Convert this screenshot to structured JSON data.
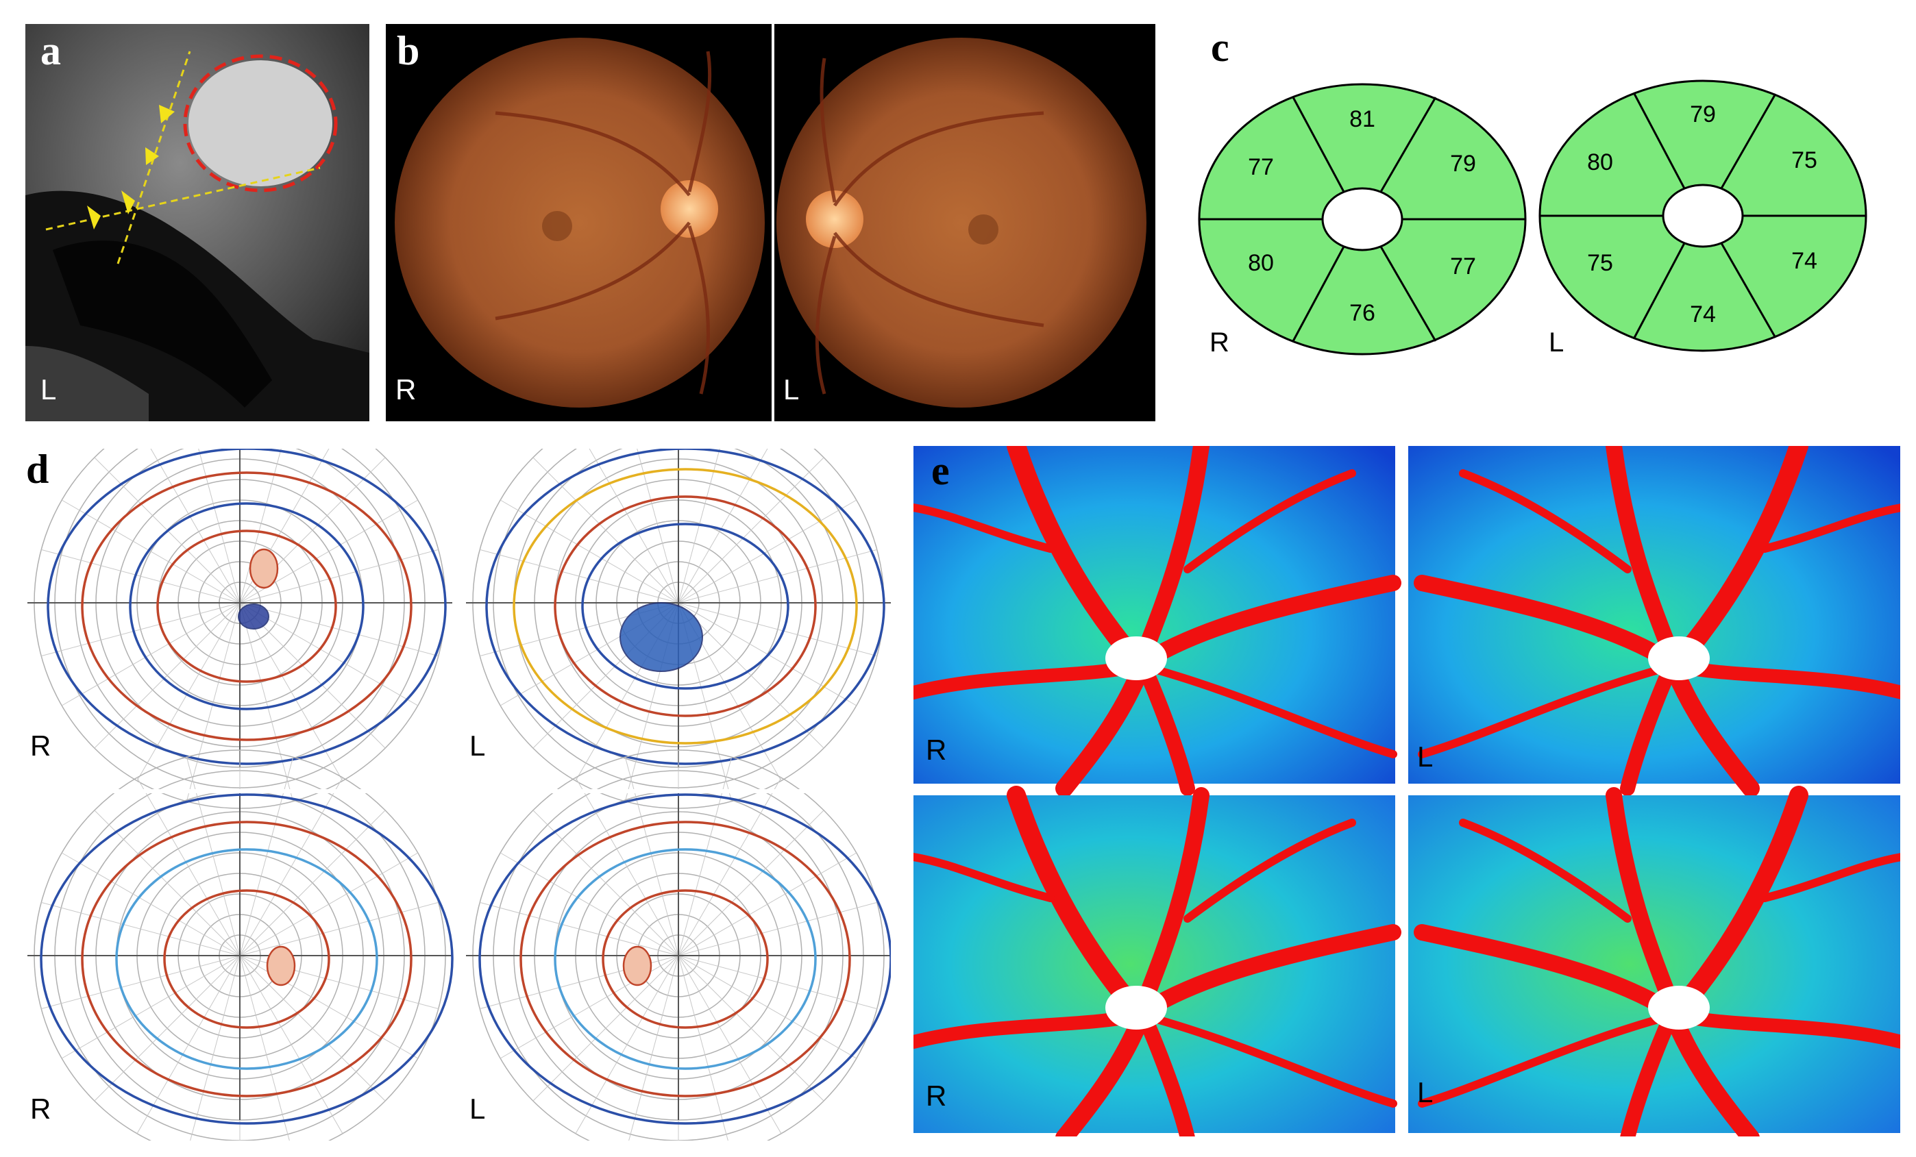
{
  "panel_a": {
    "label": "a",
    "side": "L"
  },
  "panel_b": {
    "label": "b",
    "right_side": "R",
    "left_side": "L"
  },
  "panel_c": {
    "label": "c",
    "right_eye": {
      "side": "R",
      "sectors": [
        "81",
        "79",
        "77",
        "76",
        "80",
        "77"
      ]
    },
    "left_eye": {
      "side": "L",
      "sectors": [
        "79",
        "75",
        "74",
        "74",
        "75",
        "80"
      ]
    },
    "fill_color": "#7CE97C"
  },
  "panel_d": {
    "label": "d",
    "top_right": "R",
    "top_left": "L",
    "bottom_right": "R",
    "bottom_left": "L"
  },
  "panel_e": {
    "label": "e",
    "top_right": "R",
    "top_left": "L",
    "bottom_right": "R",
    "bottom_left": "L"
  }
}
